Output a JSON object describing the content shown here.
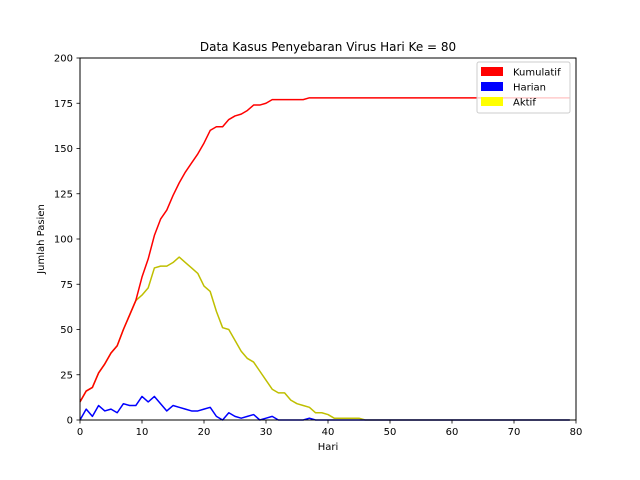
{
  "chart_data": {
    "type": "line",
    "title": "Data Kasus Penyebaran Virus Hari Ke = 80",
    "xlabel": "Hari",
    "ylabel": "Jumlah Pasien",
    "xlim": [
      0,
      80
    ],
    "ylim": [
      0,
      200
    ],
    "xticks": [
      0,
      10,
      20,
      30,
      40,
      50,
      60,
      70,
      80
    ],
    "yticks": [
      0,
      25,
      50,
      75,
      100,
      125,
      150,
      175,
      200
    ],
    "grid": false,
    "legend_position": "top-right",
    "series": [
      {
        "name": "Kumulatif",
        "color": "#ff0000",
        "x": [
          0,
          1,
          2,
          3,
          4,
          5,
          6,
          7,
          8,
          9,
          10,
          11,
          12,
          13,
          14,
          15,
          16,
          17,
          18,
          19,
          20,
          21,
          22,
          23,
          24,
          25,
          26,
          27,
          28,
          29,
          30,
          31,
          32,
          33,
          34,
          35,
          36,
          37,
          38,
          39,
          40,
          41,
          42,
          43,
          44,
          45,
          46,
          47,
          48,
          49,
          50,
          51,
          52,
          53,
          54,
          55,
          56,
          57,
          58,
          59,
          60,
          61,
          62,
          63,
          64,
          65,
          66,
          67,
          68,
          69,
          70,
          71,
          72,
          73,
          74,
          75,
          76,
          77,
          78,
          79
        ],
        "values": [
          10,
          16,
          18,
          26,
          31,
          37,
          41,
          50,
          58,
          66,
          79,
          89,
          102,
          111,
          116,
          124,
          131,
          137,
          142,
          147,
          153,
          160,
          162,
          162,
          166,
          168,
          169,
          171,
          174,
          174,
          175,
          177,
          177,
          177,
          177,
          177,
          177,
          178,
          178,
          178,
          178,
          178,
          178,
          178,
          178,
          178,
          178,
          178,
          178,
          178,
          178,
          178,
          178,
          178,
          178,
          178,
          178,
          178,
          178,
          178,
          178,
          178,
          178,
          178,
          178,
          178,
          178,
          178,
          178,
          178,
          178,
          178,
          178,
          178,
          178,
          178,
          178,
          178,
          178,
          178
        ]
      },
      {
        "name": "Harian",
        "color": "#0000ff",
        "x": [
          0,
          1,
          2,
          3,
          4,
          5,
          6,
          7,
          8,
          9,
          10,
          11,
          12,
          13,
          14,
          15,
          16,
          17,
          18,
          19,
          20,
          21,
          22,
          23,
          24,
          25,
          26,
          27,
          28,
          29,
          30,
          31,
          32,
          33,
          34,
          35,
          36,
          37,
          38,
          39,
          40,
          41,
          42,
          43,
          44,
          45,
          46,
          47,
          48,
          49,
          50,
          51,
          52,
          53,
          54,
          55,
          56,
          57,
          58,
          59,
          60,
          61,
          62,
          63,
          64,
          65,
          66,
          67,
          68,
          69,
          70,
          71,
          72,
          73,
          74,
          75,
          76,
          77,
          78,
          79
        ],
        "values": [
          0,
          6,
          2,
          8,
          5,
          6,
          4,
          9,
          8,
          8,
          13,
          10,
          13,
          9,
          5,
          8,
          7,
          6,
          5,
          5,
          6,
          7,
          2,
          0,
          4,
          2,
          1,
          2,
          3,
          0,
          1,
          2,
          0,
          0,
          0,
          0,
          0,
          1,
          0,
          0,
          0,
          0,
          0,
          0,
          0,
          0,
          0,
          0,
          0,
          0,
          0,
          0,
          0,
          0,
          0,
          0,
          0,
          0,
          0,
          0,
          0,
          0,
          0,
          0,
          0,
          0,
          0,
          0,
          0,
          0,
          0,
          0,
          0,
          0,
          0,
          0,
          0,
          0,
          0,
          0
        ]
      },
      {
        "name": "Aktif",
        "color": "#ffff00",
        "line_color": "#bfbf00",
        "x": [
          0,
          1,
          2,
          3,
          4,
          5,
          6,
          7,
          8,
          9,
          10,
          11,
          12,
          13,
          14,
          15,
          16,
          17,
          18,
          19,
          20,
          21,
          22,
          23,
          24,
          25,
          26,
          27,
          28,
          29,
          30,
          31,
          32,
          33,
          34,
          35,
          36,
          37,
          38,
          39,
          40,
          41,
          42,
          43,
          44,
          45,
          46,
          47,
          48,
          49,
          50,
          51,
          52,
          53,
          54,
          55,
          56,
          57,
          58,
          59,
          60,
          61,
          62,
          63,
          64,
          65,
          66,
          67,
          68,
          69,
          70,
          71,
          72,
          73,
          74,
          75,
          76,
          77,
          78,
          79
        ],
        "values": [
          10,
          16,
          18,
          26,
          31,
          37,
          41,
          50,
          58,
          66,
          69,
          73,
          84,
          85,
          85,
          87,
          90,
          87,
          84,
          81,
          74,
          71,
          60,
          51,
          50,
          44,
          38,
          34,
          32,
          27,
          22,
          17,
          15,
          15,
          11,
          9,
          8,
          7,
          4,
          4,
          3,
          1,
          1,
          1,
          1,
          1,
          0,
          0,
          0,
          0,
          0,
          0,
          0,
          0,
          0,
          0,
          0,
          0,
          0,
          0,
          0,
          0,
          0,
          0,
          0,
          0,
          0,
          0,
          0,
          0,
          0,
          0,
          0,
          0,
          0,
          0,
          0,
          0,
          0,
          0
        ]
      }
    ]
  }
}
